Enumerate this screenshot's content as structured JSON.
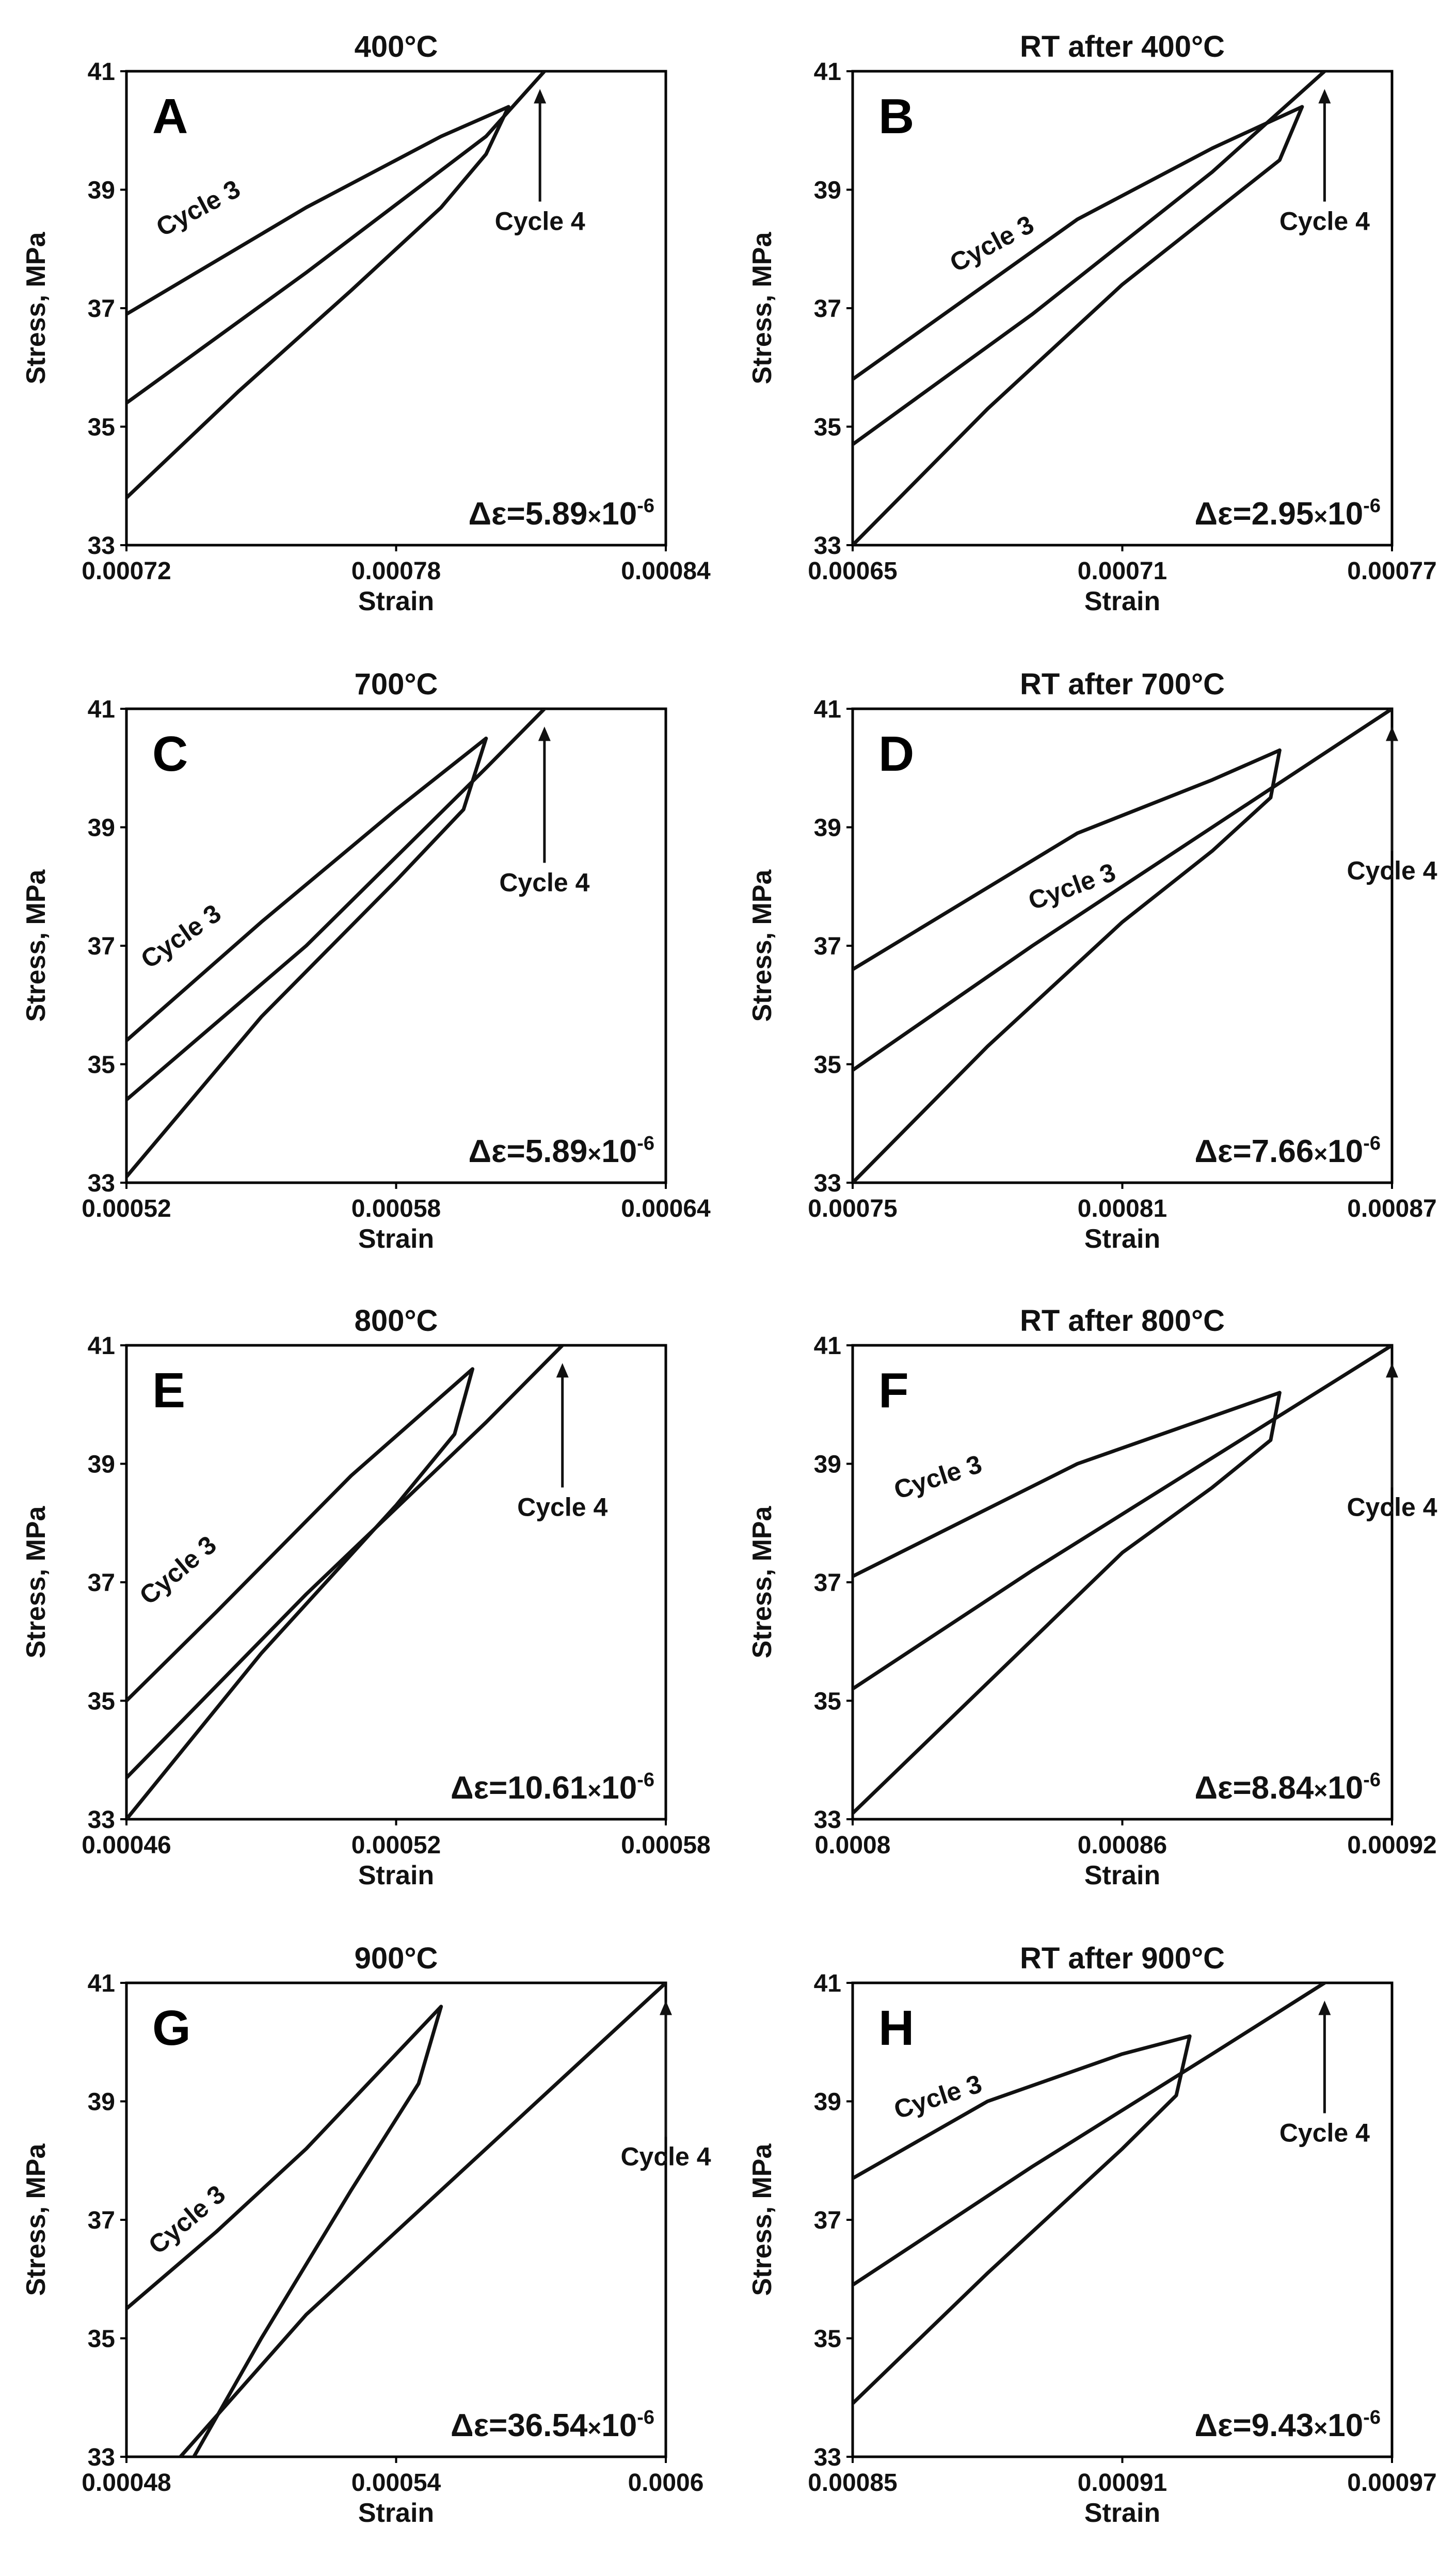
{
  "figure": {
    "ylabel": "Stress, MPa",
    "xlabel": "Strain",
    "cycle3_label": "Cycle 3",
    "cycle4_label": "Cycle 4",
    "delta_prefix": "Δε=",
    "delta_times": "×",
    "delta_base": "10",
    "delta_exp": "-6"
  },
  "chart_data": [
    {
      "type": "line",
      "letter": "A",
      "title": "400°C",
      "xlim": [
        0.00072,
        0.00084
      ],
      "xticks": [
        "0.00072",
        "0.00078",
        "0.00084"
      ],
      "ylim": [
        33,
        41
      ],
      "yticks": [
        "33",
        "35",
        "37",
        "39",
        "41"
      ],
      "delta": "5.89",
      "series": [
        {
          "name": "Cycle 3 loading",
          "x": [
            0.00072,
            0.000745,
            0.00077,
            0.00079,
            0.0008,
            0.000805
          ],
          "y": [
            33.8,
            35.6,
            37.3,
            38.7,
            39.6,
            40.4
          ]
        },
        {
          "name": "Cycle 3 unloading",
          "x": [
            0.000805,
            0.00079,
            0.00076,
            0.00072
          ],
          "y": [
            40.4,
            39.9,
            38.7,
            36.9
          ]
        },
        {
          "name": "Cycle 4",
          "x": [
            0.00072,
            0.00076,
            0.0008,
            0.000813
          ],
          "y": [
            35.4,
            37.6,
            39.9,
            41.0
          ]
        }
      ]
    },
    {
      "type": "line",
      "letter": "B",
      "title": "RT after 400°C",
      "xlim": [
        0.00065,
        0.00077
      ],
      "xticks": [
        "0.00065",
        "0.00071",
        "0.00077"
      ],
      "ylim": [
        33,
        41
      ],
      "yticks": [
        "33",
        "35",
        "37",
        "39",
        "41"
      ],
      "delta": "2.95",
      "series": [
        {
          "name": "Cycle 3 loading",
          "x": [
            0.00065,
            0.00068,
            0.00071,
            0.00073,
            0.000745,
            0.00075
          ],
          "y": [
            33.0,
            35.3,
            37.4,
            38.6,
            39.5,
            40.4
          ]
        },
        {
          "name": "Cycle 3 unloading",
          "x": [
            0.00075,
            0.00073,
            0.0007,
            0.00065
          ],
          "y": [
            40.4,
            39.7,
            38.5,
            35.8
          ]
        },
        {
          "name": "Cycle 4",
          "x": [
            0.00065,
            0.00069,
            0.00073,
            0.000755
          ],
          "y": [
            34.7,
            36.9,
            39.3,
            41.0
          ]
        }
      ]
    },
    {
      "type": "line",
      "letter": "C",
      "title": "700°C",
      "xlim": [
        0.00052,
        0.00064
      ],
      "xticks": [
        "0.00052",
        "0.00058",
        "0.00064"
      ],
      "ylim": [
        33,
        41
      ],
      "yticks": [
        "33",
        "35",
        "37",
        "39",
        "41"
      ],
      "delta": "5.89",
      "series": [
        {
          "name": "Cycle 3 loading",
          "x": [
            0.00052,
            0.00055,
            0.00058,
            0.000595,
            0.0006
          ],
          "y": [
            33.1,
            35.8,
            38.1,
            39.3,
            40.5
          ]
        },
        {
          "name": "Cycle 3 unloading",
          "x": [
            0.0006,
            0.00058,
            0.00055,
            0.00052
          ],
          "y": [
            40.5,
            39.3,
            37.4,
            35.4
          ]
        },
        {
          "name": "Cycle 4",
          "x": [
            0.00052,
            0.00056,
            0.0006,
            0.000613
          ],
          "y": [
            34.4,
            37.0,
            40.0,
            41.0
          ]
        }
      ]
    },
    {
      "type": "line",
      "letter": "D",
      "title": "RT after 700°C",
      "xlim": [
        0.00075,
        0.00087
      ],
      "xticks": [
        "0.00075",
        "0.00081",
        "0.00087"
      ],
      "ylim": [
        33,
        41
      ],
      "yticks": [
        "33",
        "35",
        "37",
        "39",
        "41"
      ],
      "delta": "7.66",
      "series": [
        {
          "name": "Cycle 3 loading",
          "x": [
            0.00075,
            0.00078,
            0.00081,
            0.00083,
            0.000843,
            0.000845
          ],
          "y": [
            33.0,
            35.3,
            37.4,
            38.6,
            39.5,
            40.3
          ]
        },
        {
          "name": "Cycle 3 unloading",
          "x": [
            0.000845,
            0.00083,
            0.0008,
            0.00075
          ],
          "y": [
            40.3,
            39.8,
            38.9,
            36.6
          ]
        },
        {
          "name": "Cycle 4",
          "x": [
            0.00075,
            0.00079,
            0.00083,
            0.00087
          ],
          "y": [
            34.9,
            37.0,
            39.0,
            41.0
          ]
        }
      ]
    },
    {
      "type": "line",
      "letter": "E",
      "title": "800°C",
      "xlim": [
        0.00046,
        0.00058
      ],
      "xticks": [
        "0.00046",
        "0.00052",
        "0.00058"
      ],
      "ylim": [
        33,
        41
      ],
      "yticks": [
        "33",
        "35",
        "37",
        "39",
        "41"
      ],
      "delta": "10.61",
      "series": [
        {
          "name": "Cycle 3 loading",
          "x": [
            0.00046,
            0.00049,
            0.00052,
            0.000533,
            0.000537
          ],
          "y": [
            33.0,
            35.8,
            38.3,
            39.5,
            40.6
          ]
        },
        {
          "name": "Cycle 3 unloading",
          "x": [
            0.000537,
            0.00051,
            0.00048,
            0.00046
          ],
          "y": [
            40.6,
            38.8,
            36.5,
            35.0
          ]
        },
        {
          "name": "Cycle 4",
          "x": [
            0.00046,
            0.0005,
            0.00054,
            0.000557
          ],
          "y": [
            33.7,
            36.8,
            39.7,
            41.0
          ]
        }
      ]
    },
    {
      "type": "line",
      "letter": "F",
      "title": "RT after 800°C",
      "xlim": [
        0.0008,
        0.00092
      ],
      "xticks": [
        "0.0008",
        "0.00086",
        "0.00092"
      ],
      "ylim": [
        33,
        41
      ],
      "yticks": [
        "33",
        "35",
        "37",
        "39",
        "41"
      ],
      "delta": "8.84",
      "series": [
        {
          "name": "Cycle 3 loading",
          "x": [
            0.0008,
            0.00083,
            0.00086,
            0.00088,
            0.000893,
            0.000895
          ],
          "y": [
            33.1,
            35.3,
            37.5,
            38.6,
            39.4,
            40.2
          ]
        },
        {
          "name": "Cycle 3 unloading",
          "x": [
            0.000895,
            0.00088,
            0.00085,
            0.0008
          ],
          "y": [
            40.2,
            39.8,
            39.0,
            37.1
          ]
        },
        {
          "name": "Cycle 4",
          "x": [
            0.0008,
            0.00084,
            0.00088,
            0.00092
          ],
          "y": [
            35.2,
            37.2,
            39.1,
            41.0
          ]
        }
      ]
    },
    {
      "type": "line",
      "letter": "G",
      "title": "900°C",
      "xlim": [
        0.00048,
        0.0006
      ],
      "xticks": [
        "0.00048",
        "0.00054",
        "0.0006"
      ],
      "ylim": [
        33,
        41
      ],
      "yticks": [
        "33",
        "35",
        "37",
        "39",
        "41"
      ],
      "delta": "36.54",
      "series": [
        {
          "name": "Cycle 3 loading",
          "x": [
            0.000495,
            0.00051,
            0.00053,
            0.000545,
            0.00055
          ],
          "y": [
            33.0,
            35.0,
            37.5,
            39.3,
            40.6
          ]
        },
        {
          "name": "Cycle 3 unloading",
          "x": [
            0.00055,
            0.00052,
            0.0005,
            0.00048
          ],
          "y": [
            40.6,
            38.2,
            36.8,
            35.5
          ]
        },
        {
          "name": "Cycle 4",
          "x": [
            0.000492,
            0.00052,
            0.00056,
            0.0006
          ],
          "y": [
            33.0,
            35.4,
            38.2,
            41.0
          ]
        }
      ]
    },
    {
      "type": "line",
      "letter": "H",
      "title": "RT after 900°C",
      "xlim": [
        0.00085,
        0.00097
      ],
      "xticks": [
        "0.00085",
        "0.00091",
        "0.00097"
      ],
      "ylim": [
        33,
        41
      ],
      "yticks": [
        "33",
        "35",
        "37",
        "39",
        "41"
      ],
      "delta": "9.43",
      "series": [
        {
          "name": "Cycle 3 loading",
          "x": [
            0.00085,
            0.00088,
            0.00091,
            0.000922,
            0.000925
          ],
          "y": [
            33.9,
            36.1,
            38.2,
            39.1,
            40.1
          ]
        },
        {
          "name": "Cycle 3 unloading",
          "x": [
            0.000925,
            0.00091,
            0.00088,
            0.00085
          ],
          "y": [
            40.1,
            39.8,
            39.0,
            37.7
          ]
        },
        {
          "name": "Cycle 4",
          "x": [
            0.00085,
            0.00089,
            0.00093,
            0.000955
          ],
          "y": [
            35.9,
            37.9,
            39.8,
            41.0
          ]
        }
      ]
    }
  ]
}
